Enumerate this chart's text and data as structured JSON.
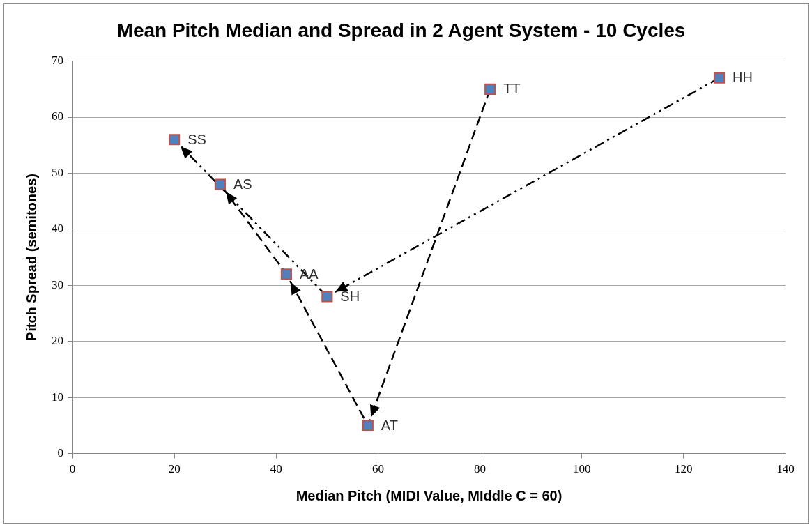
{
  "chart_data": {
    "type": "scatter",
    "title": "Mean Pitch Median and Spread in 2 Agent System - 10 Cycles",
    "xlabel": "Median Pitch (MIDI Value, MIddle C = 60)",
    "ylabel": "Pitch Spread (semitones)",
    "xlim": [
      0,
      140
    ],
    "xticks": [
      0,
      20,
      40,
      60,
      80,
      100,
      120,
      140
    ],
    "ylim": [
      0,
      70
    ],
    "yticks": [
      0,
      10,
      20,
      30,
      40,
      50,
      60,
      70
    ],
    "grid": "y",
    "legend": false,
    "series": [
      {
        "color": "#4f81bd",
        "marker": "square",
        "x": [
          20,
          29,
          42,
          50,
          58,
          82,
          127
        ],
        "values": [
          56,
          48,
          32,
          28,
          5,
          65,
          67
        ]
      },
      {
        "type": "line",
        "color": "#000000",
        "marker": "none",
        "line_style": "dashed",
        "x": [
          82,
          58,
          42,
          29
        ],
        "values": [
          65,
          5,
          32,
          48
        ]
      },
      {
        "type": "line",
        "color": "#000000",
        "marker": "none",
        "line_style": "dashdot",
        "x": [
          127,
          50,
          20
        ],
        "values": [
          67,
          28,
          56
        ]
      }
    ],
    "annotations": [
      {
        "text": "SS",
        "x": 20,
        "y": 56
      },
      {
        "text": "AS",
        "x": 29,
        "y": 48
      },
      {
        "text": "AA",
        "x": 42,
        "y": 32
      },
      {
        "text": "SH",
        "x": 50,
        "y": 28
      },
      {
        "text": "AT",
        "x": 58,
        "y": 5
      },
      {
        "text": "TT",
        "x": 82,
        "y": 65
      },
      {
        "text": "HH",
        "x": 127,
        "y": 67
      }
    ]
  }
}
